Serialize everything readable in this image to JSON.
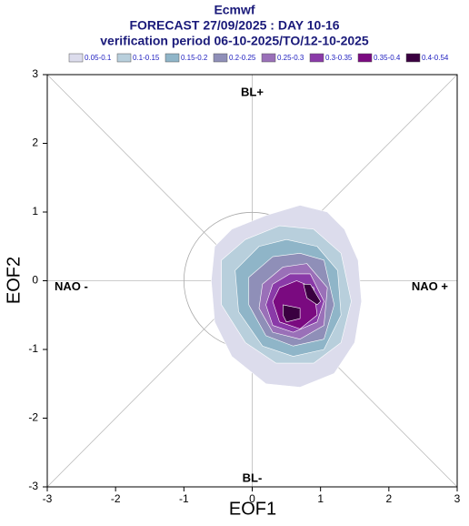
{
  "chart_data": {
    "type": "contour",
    "title": "Ecmwf",
    "subtitle": "FORECAST 27/09/2025 : DAY 10-16",
    "subtitle2": "verification period 06-10-2025/TO/12-10-2025",
    "xlabel": "EOF1",
    "ylabel": "EOF2",
    "xlim": [
      -3,
      3
    ],
    "ylim": [
      -3,
      3
    ],
    "xticks": [
      -3,
      -2,
      -1,
      0,
      1,
      2,
      3
    ],
    "yticks": [
      -3,
      -2,
      -1,
      0,
      1,
      2,
      3
    ],
    "unit_circle_radius": 1,
    "annotations": {
      "top": "BL+",
      "bottom": "BL-",
      "left": "NAO -",
      "right": "NAO +"
    },
    "series": [
      {
        "name": "0.05-0.1",
        "color": "#dcdcec",
        "x": [
          -0.55,
          -0.3,
          0.2,
          0.7,
          1.1,
          1.35,
          1.55,
          1.6,
          1.5,
          1.2,
          0.7,
          0.2,
          -0.3,
          -0.55,
          -0.6
        ],
        "y": [
          0.5,
          0.75,
          0.95,
          1.1,
          1.0,
          0.75,
          0.3,
          -0.3,
          -0.9,
          -1.35,
          -1.55,
          -1.5,
          -1.1,
          -0.6,
          0.0
        ]
      },
      {
        "name": "0.1-0.15",
        "color": "#b8cfdc",
        "x": [
          -0.45,
          -0.1,
          0.4,
          0.9,
          1.3,
          1.45,
          1.3,
          0.9,
          0.35,
          -0.1,
          -0.45
        ],
        "y": [
          0.3,
          0.6,
          0.8,
          0.75,
          0.4,
          -0.3,
          -0.9,
          -1.2,
          -1.2,
          -0.9,
          -0.35
        ]
      },
      {
        "name": "0.15-0.2",
        "color": "#8fb5c8",
        "x": [
          -0.25,
          0.1,
          0.5,
          0.95,
          1.25,
          1.3,
          1.05,
          0.6,
          0.15,
          -0.2
        ],
        "y": [
          0.15,
          0.5,
          0.6,
          0.5,
          0.15,
          -0.5,
          -1.0,
          -1.1,
          -0.95,
          -0.45
        ]
      },
      {
        "name": "0.2-0.25",
        "color": "#8f8fb8",
        "x": [
          -0.05,
          0.3,
          0.7,
          1.05,
          1.2,
          1.05,
          0.6,
          0.2,
          -0.05
        ],
        "y": [
          0.05,
          0.35,
          0.4,
          0.3,
          -0.35,
          -0.85,
          -0.95,
          -0.8,
          -0.35
        ]
      },
      {
        "name": "0.25-0.3",
        "color": "#9a70b8",
        "x": [
          0.15,
          0.45,
          0.8,
          1.1,
          1.05,
          0.7,
          0.3,
          0.1
        ],
        "y": [
          -0.05,
          0.2,
          0.25,
          -0.1,
          -0.65,
          -0.85,
          -0.75,
          -0.4
        ]
      },
      {
        "name": "0.3-0.35",
        "color": "#8a3aa8",
        "x": [
          0.3,
          0.55,
          0.85,
          1.05,
          0.95,
          0.6,
          0.3,
          0.2
        ],
        "y": [
          -0.05,
          0.1,
          0.1,
          -0.3,
          -0.6,
          -0.75,
          -0.65,
          -0.35
        ]
      },
      {
        "name": "0.35-0.4",
        "color": "#7a0a80",
        "x": [
          0.4,
          0.65,
          0.9,
          0.95,
          0.7,
          0.4,
          0.3
        ],
        "y": [
          -0.1,
          0.0,
          -0.1,
          -0.5,
          -0.7,
          -0.6,
          -0.3
        ]
      },
      {
        "name": "0.4-0.54",
        "color": "#3a0040",
        "x": [
          0.75,
          0.85,
          1.0,
          0.95,
          0.8,
          null,
          0.45,
          0.7,
          0.7,
          0.5,
          0.45
        ],
        "y": [
          -0.05,
          -0.05,
          -0.3,
          -0.35,
          -0.25,
          null,
          -0.35,
          -0.4,
          -0.55,
          -0.6,
          -0.5
        ]
      }
    ]
  }
}
